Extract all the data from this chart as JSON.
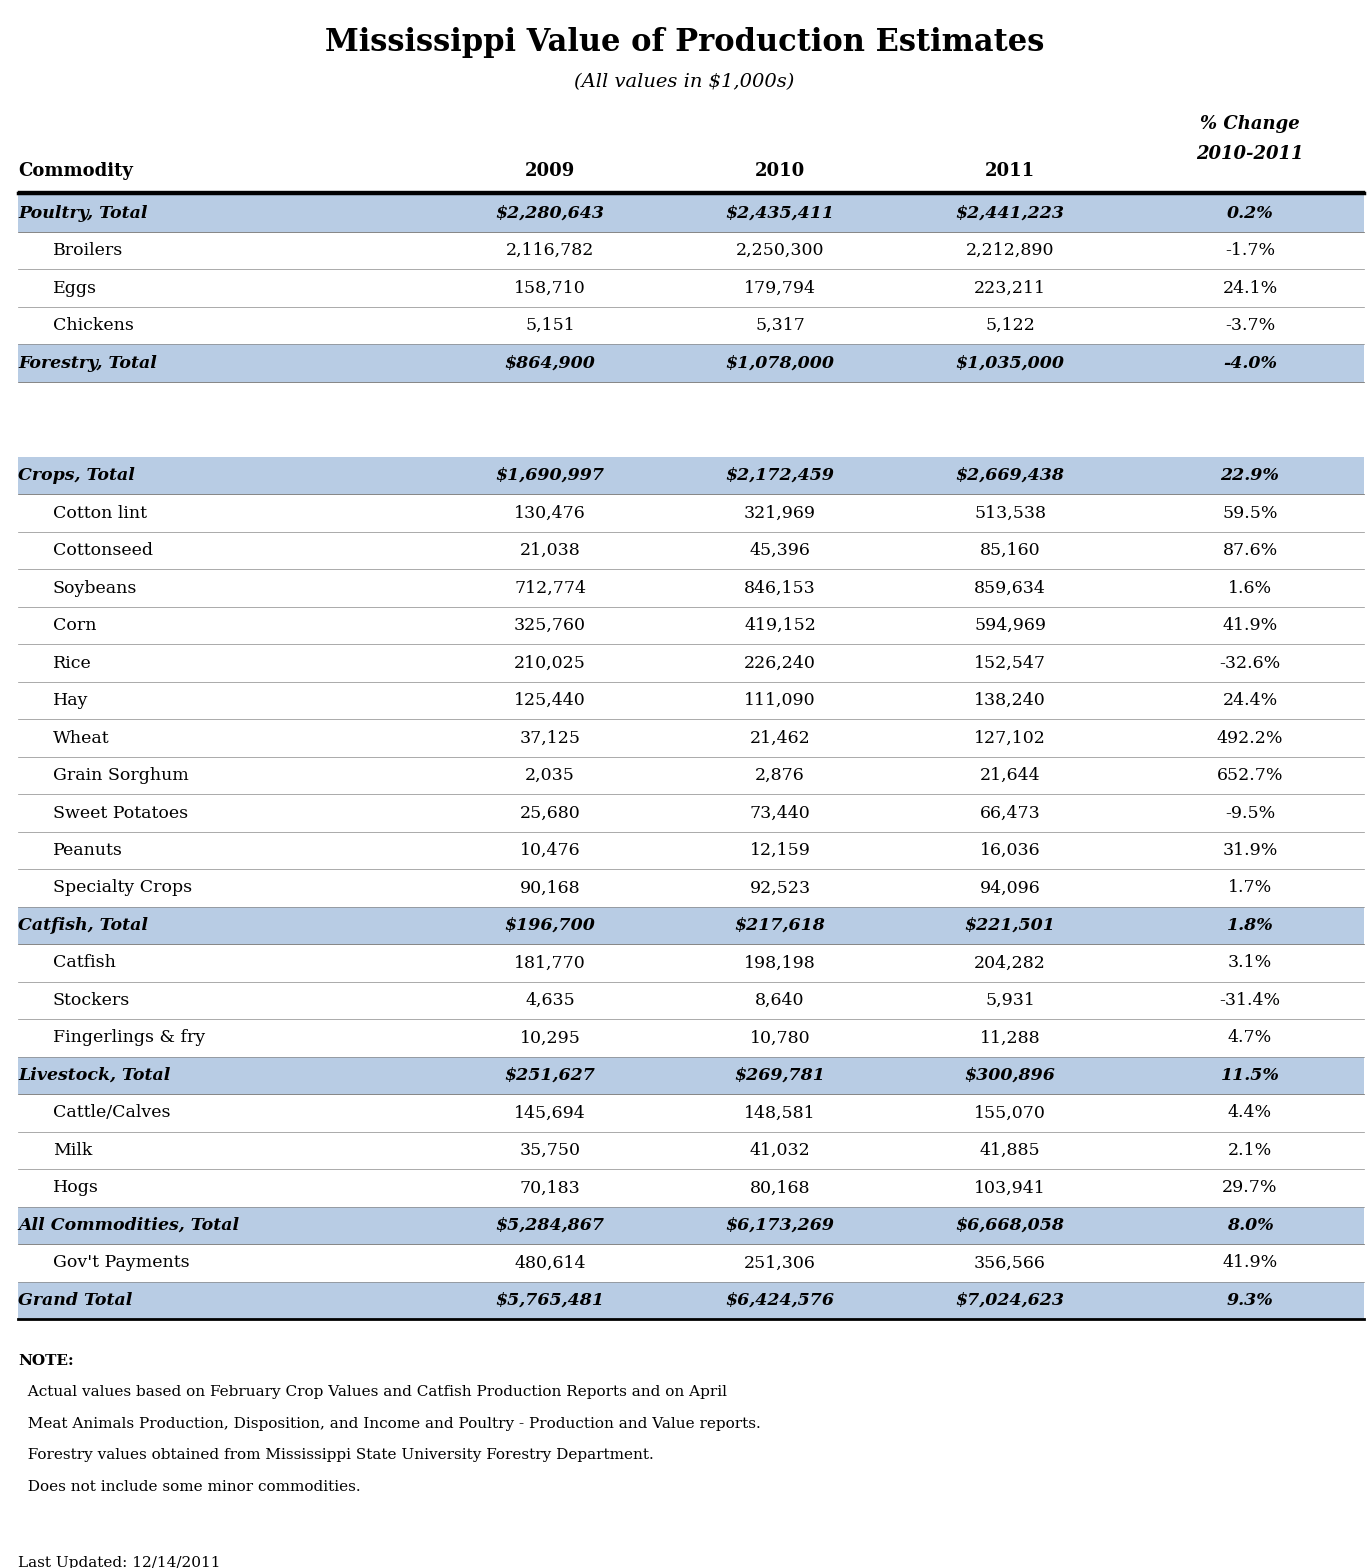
{
  "title": "Mississippi Value of Production Estimates",
  "subtitle": "(All values in $1,000s)",
  "col_headers": [
    "Commodity",
    "2009",
    "2010",
    "2011",
    "% Change\n2010-2011"
  ],
  "rows": [
    {
      "label": "Poultry, Total",
      "is_total": true,
      "v2009": "$2,280,643",
      "v2010": "$2,435,411",
      "v2011": "$2,441,223",
      "pct": "0.2%"
    },
    {
      "label": "  Broilers",
      "is_total": false,
      "v2009": "2,116,782",
      "v2010": "2,250,300",
      "v2011": "2,212,890",
      "pct": "-1.7%"
    },
    {
      "label": "  Eggs",
      "is_total": false,
      "v2009": "158,710",
      "v2010": "179,794",
      "v2011": "223,211",
      "pct": "24.1%"
    },
    {
      "label": "  Chickens",
      "is_total": false,
      "v2009": "5,151",
      "v2010": "5,317",
      "v2011": "5,122",
      "pct": "-3.7%"
    },
    {
      "label": "Forestry, Total",
      "is_total": true,
      "v2009": "$864,900",
      "v2010": "$1,078,000",
      "v2011": "$1,035,000",
      "pct": "-4.0%"
    },
    {
      "label": "",
      "is_total": false,
      "v2009": "",
      "v2010": "",
      "v2011": "",
      "pct": ""
    },
    {
      "label": "",
      "is_total": false,
      "v2009": "",
      "v2010": "",
      "v2011": "",
      "pct": ""
    },
    {
      "label": "Crops, Total",
      "is_total": true,
      "v2009": "$1,690,997",
      "v2010": "$2,172,459",
      "v2011": "$2,669,438",
      "pct": "22.9%"
    },
    {
      "label": "  Cotton lint",
      "is_total": false,
      "v2009": "130,476",
      "v2010": "321,969",
      "v2011": "513,538",
      "pct": "59.5%"
    },
    {
      "label": "  Cottonseed",
      "is_total": false,
      "v2009": "21,038",
      "v2010": "45,396",
      "v2011": "85,160",
      "pct": "87.6%"
    },
    {
      "label": "  Soybeans",
      "is_total": false,
      "v2009": "712,774",
      "v2010": "846,153",
      "v2011": "859,634",
      "pct": "1.6%"
    },
    {
      "label": "  Corn",
      "is_total": false,
      "v2009": "325,760",
      "v2010": "419,152",
      "v2011": "594,969",
      "pct": "41.9%"
    },
    {
      "label": "  Rice",
      "is_total": false,
      "v2009": "210,025",
      "v2010": "226,240",
      "v2011": "152,547",
      "pct": "-32.6%"
    },
    {
      "label": "  Hay",
      "is_total": false,
      "v2009": "125,440",
      "v2010": "111,090",
      "v2011": "138,240",
      "pct": "24.4%"
    },
    {
      "label": "  Wheat",
      "is_total": false,
      "v2009": "37,125",
      "v2010": "21,462",
      "v2011": "127,102",
      "pct": "492.2%"
    },
    {
      "label": "  Grain Sorghum",
      "is_total": false,
      "v2009": "2,035",
      "v2010": "2,876",
      "v2011": "21,644",
      "pct": "652.7%"
    },
    {
      "label": "  Sweet Potatoes",
      "is_total": false,
      "v2009": "25,680",
      "v2010": "73,440",
      "v2011": "66,473",
      "pct": "-9.5%"
    },
    {
      "label": "  Peanuts",
      "is_total": false,
      "v2009": "10,476",
      "v2010": "12,159",
      "v2011": "16,036",
      "pct": "31.9%"
    },
    {
      "label": "  Specialty Crops",
      "is_total": false,
      "v2009": "90,168",
      "v2010": "92,523",
      "v2011": "94,096",
      "pct": "1.7%"
    },
    {
      "label": "Catfish, Total",
      "is_total": true,
      "v2009": "$196,700",
      "v2010": "$217,618",
      "v2011": "$221,501",
      "pct": "1.8%"
    },
    {
      "label": "  Catfish",
      "is_total": false,
      "v2009": "181,770",
      "v2010": "198,198",
      "v2011": "204,282",
      "pct": "3.1%"
    },
    {
      "label": "  Stockers",
      "is_total": false,
      "v2009": "4,635",
      "v2010": "8,640",
      "v2011": "5,931",
      "pct": "-31.4%"
    },
    {
      "label": "  Fingerlings & fry",
      "is_total": false,
      "v2009": "10,295",
      "v2010": "10,780",
      "v2011": "11,288",
      "pct": "4.7%"
    },
    {
      "label": "Livestock, Total",
      "is_total": true,
      "v2009": "$251,627",
      "v2010": "$269,781",
      "v2011": "$300,896",
      "pct": "11.5%"
    },
    {
      "label": "  Cattle/Calves",
      "is_total": false,
      "v2009": "145,694",
      "v2010": "148,581",
      "v2011": "155,070",
      "pct": "4.4%"
    },
    {
      "label": "  Milk",
      "is_total": false,
      "v2009": "35,750",
      "v2010": "41,032",
      "v2011": "41,885",
      "pct": "2.1%"
    },
    {
      "label": "  Hogs",
      "is_total": false,
      "v2009": "70,183",
      "v2010": "80,168",
      "v2011": "103,941",
      "pct": "29.7%"
    },
    {
      "label": "All Commodities, Total",
      "is_total": true,
      "v2009": "$5,284,867",
      "v2010": "$6,173,269",
      "v2011": "$6,668,058",
      "pct": "8.0%"
    },
    {
      "label": "  Gov't Payments",
      "is_total": false,
      "v2009": "480,614",
      "v2010": "251,306",
      "v2011": "356,566",
      "pct": "41.9%"
    },
    {
      "label": "Grand Total",
      "is_total": true,
      "v2009": "$5,765,481",
      "v2010": "$6,424,576",
      "v2011": "$7,024,623",
      "pct": "9.3%"
    }
  ],
  "note_lines": [
    "NOTE:",
    "  Actual values based on February Crop Values and Catfish Production Reports and on April",
    "  Meat Animals Production, Disposition, and Income and Poultry - Production and Value reports.",
    "  Forestry values obtained from Mississippi State University Forestry Department.",
    "  Does not include some minor commodities."
  ],
  "last_updated": "Last Updated: 12/14/2011",
  "header_bg": "#a8bfd4",
  "total_bg": "#b8cce4",
  "white_bg": "#ffffff",
  "title_font_size": 22,
  "subtitle_font_size": 14,
  "header_font_size": 13,
  "row_font_size": 12.5,
  "note_font_size": 11
}
